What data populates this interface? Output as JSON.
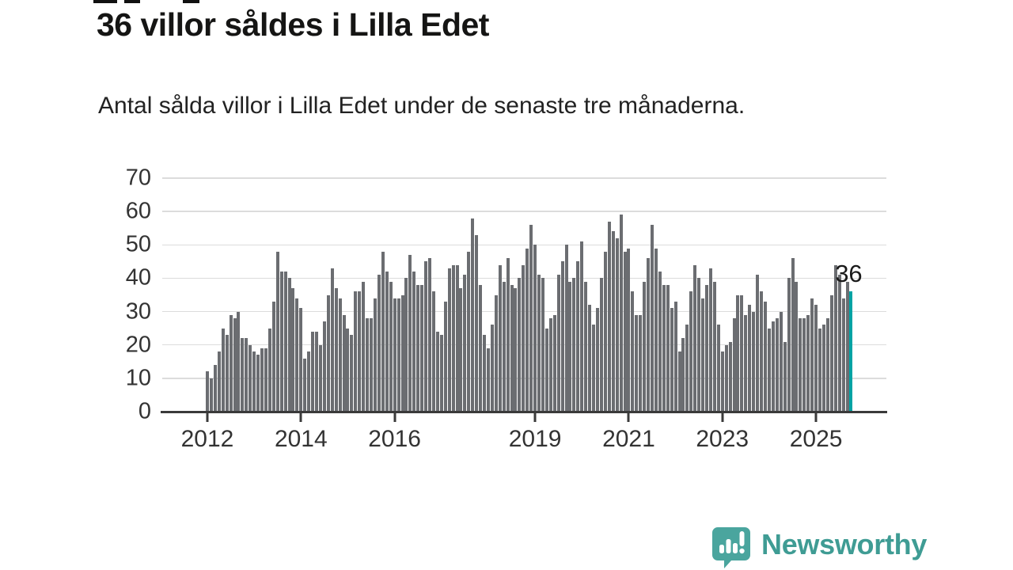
{
  "header": {
    "title": "36 villor såldes i Lilla Edet",
    "subtitle": "Antal sålda villor i Lilla Edet under de senaste tre månaderna."
  },
  "chart_data": {
    "type": "bar",
    "title": "36 villor såldes i Lilla Edet",
    "subtitle": "Antal sålda villor i Lilla Edet under de senaste tre månaderna.",
    "xlabel": "",
    "ylabel": "",
    "frequency": "monthly (rolling three-month sales)",
    "x_start": "2012-01",
    "x_end": "2025-10",
    "ylim": [
      0,
      70
    ],
    "grid": "horizontal",
    "legend": null,
    "yticks": [
      0,
      10,
      20,
      30,
      40,
      50,
      60,
      70
    ],
    "xticks": [
      {
        "label": "2012",
        "month_index": 0
      },
      {
        "label": "2014",
        "month_index": 24
      },
      {
        "label": "2016",
        "month_index": 48
      },
      {
        "label": "2019",
        "month_index": 84
      },
      {
        "label": "2021",
        "month_index": 108
      },
      {
        "label": "2023",
        "month_index": 132
      },
      {
        "label": "2025",
        "month_index": 156
      }
    ],
    "values": [
      12,
      10,
      14,
      18,
      25,
      23,
      29,
      28,
      30,
      22,
      22,
      20,
      18,
      17,
      19,
      19,
      25,
      33,
      48,
      42,
      42,
      40,
      37,
      34,
      31,
      16,
      18,
      24,
      24,
      20,
      27,
      35,
      43,
      37,
      34,
      29,
      25,
      23,
      36,
      36,
      39,
      28,
      28,
      34,
      41,
      48,
      42,
      39,
      34,
      34,
      35,
      40,
      47,
      42,
      38,
      38,
      45,
      46,
      36,
      24,
      23,
      33,
      43,
      44,
      44,
      37,
      41,
      48,
      58,
      53,
      38,
      23,
      19,
      26,
      35,
      44,
      39,
      46,
      38,
      37,
      40,
      44,
      49,
      56,
      50,
      41,
      40,
      25,
      28,
      29,
      41,
      45,
      50,
      39,
      40,
      45,
      51,
      39,
      32,
      26,
      31,
      40,
      48,
      57,
      54,
      52,
      59,
      48,
      49,
      36,
      29,
      29,
      39,
      46,
      56,
      49,
      42,
      38,
      38,
      31,
      33,
      18,
      22,
      26,
      36,
      44,
      40,
      34,
      38,
      43,
      39,
      26,
      18,
      20,
      21,
      28,
      35,
      35,
      29,
      32,
      30,
      41,
      36,
      33,
      25,
      27,
      28,
      30,
      21,
      40,
      46,
      39,
      28,
      28,
      29,
      34,
      32,
      25,
      26,
      28,
      35,
      44,
      41,
      34,
      39,
      36
    ],
    "highlight_last_bar": true,
    "last_value": 36,
    "annotation": "36",
    "colors": {
      "bar": "#6b6d71",
      "highlight": "#00a3a4",
      "grid": "#dcdcdc",
      "axis": "#3a3a3a",
      "tick_text": "#333333",
      "annotation_text": "#1a1a1a"
    }
  },
  "brand": {
    "name": "Newsworthy",
    "logo": "speech-bubble-bar-chart",
    "logo_color": "#4aa59e",
    "text_color": "#3f9c94"
  }
}
